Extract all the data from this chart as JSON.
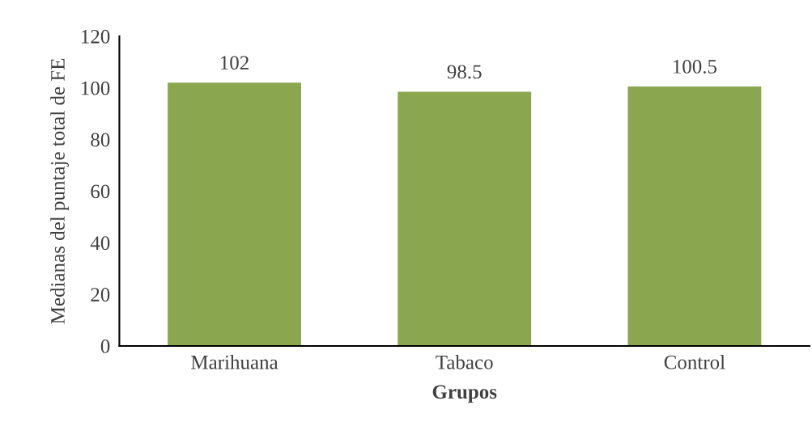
{
  "chart_data": {
    "type": "bar",
    "xlabel": "Grupos",
    "ylabel": "Medianas del puntaje total de FE",
    "categories": [
      "Marihuana",
      "Tabaco",
      "Control"
    ],
    "values": [
      102,
      98.5,
      100.5
    ],
    "color": "#8aa64e",
    "ylim": [
      0,
      120
    ],
    "yticks": [
      0,
      20,
      40,
      60,
      80,
      100,
      120
    ],
    "data_labels": true,
    "grid": false,
    "legend": false
  }
}
